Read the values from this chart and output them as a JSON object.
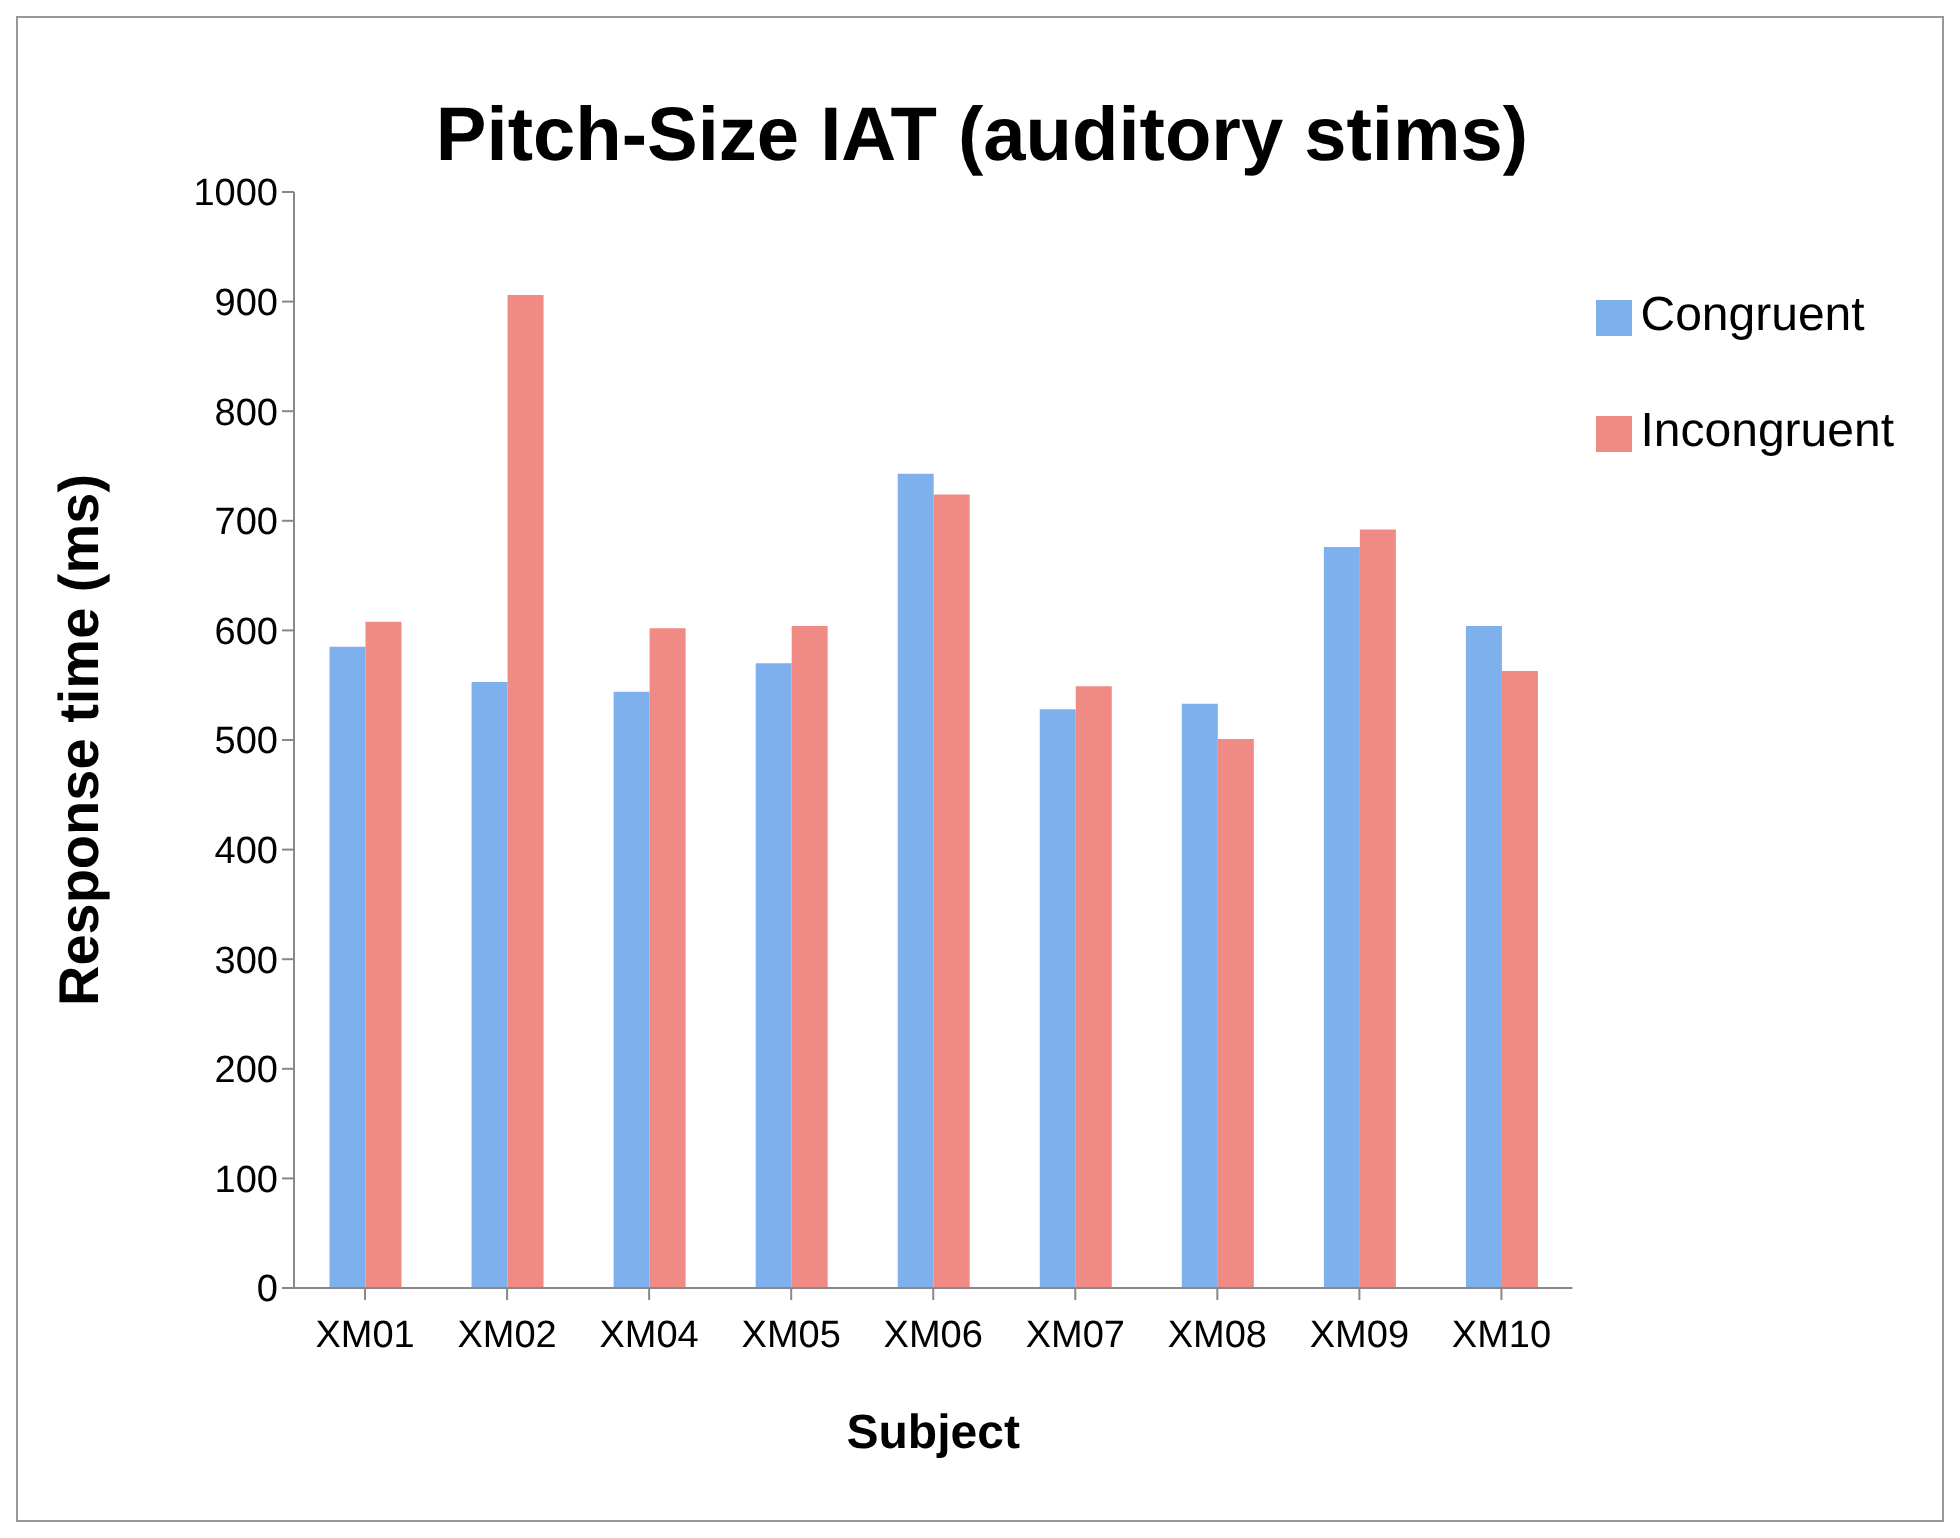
{
  "chart_data": {
    "type": "bar",
    "title": "Pitch-Size IAT (auditory stims)",
    "xlabel": "Subject",
    "ylabel": "Response time (ms)",
    "categories": [
      "XM01",
      "XM02",
      "XM04",
      "XM05",
      "XM06",
      "XM07",
      "XM08",
      "XM09",
      "XM10"
    ],
    "series": [
      {
        "name": "Congruent",
        "color": "#7fb0ee",
        "values": [
          585,
          553,
          544,
          570,
          743,
          528,
          533,
          676,
          604
        ]
      },
      {
        "name": "Incongruent",
        "color": "#ef8a84",
        "values": [
          608,
          906,
          602,
          604,
          724,
          549,
          501,
          692,
          563
        ]
      }
    ],
    "ylim": [
      0,
      1000
    ],
    "yticks": [
      0,
      100,
      200,
      300,
      400,
      500,
      600,
      700,
      800,
      900,
      1000
    ],
    "grid": false,
    "legend": "top right"
  }
}
